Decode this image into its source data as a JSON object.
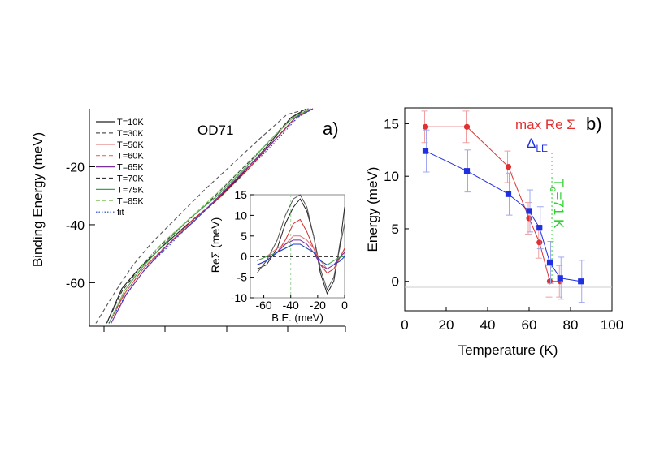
{
  "chart_data": [
    {
      "panel": "a)",
      "type": "line",
      "annotation": "OD71",
      "ylabel": "Binding Energy (meV)",
      "yticks": [
        -20,
        -40,
        -60
      ],
      "ylim": [
        0,
        -75
      ],
      "legend": [
        "T=10K",
        "T=30K",
        "T=50K",
        "T=60K",
        "T=65K",
        "T=70K",
        "T=75K",
        "T=85K",
        "fit"
      ],
      "legend_position": "top-left",
      "series": [
        {
          "name": "T=10K",
          "color": "#222222",
          "dash": "solid",
          "x": [
            0.05,
            0.12,
            0.2,
            0.3,
            0.42,
            0.55,
            0.68,
            0.8,
            0.9,
            0.97
          ],
          "y": [
            -74,
            -62,
            -55,
            -48,
            -40,
            -32,
            -22,
            -12,
            -3,
            0
          ]
        },
        {
          "name": "T=30K",
          "color": "#555555",
          "dash": "dash",
          "x": [
            0.0,
            0.09,
            0.17,
            0.26,
            0.38,
            0.5,
            0.63,
            0.76,
            0.88,
            0.98
          ],
          "y": [
            -74,
            -63,
            -54,
            -46,
            -37,
            -28,
            -19,
            -10,
            -2,
            0
          ]
        },
        {
          "name": "T=50K",
          "color": "#d03030",
          "dash": "solid",
          "x": [
            0.06,
            0.13,
            0.22,
            0.33,
            0.45,
            0.58,
            0.7,
            0.82,
            0.92,
            1.0
          ],
          "y": [
            -74,
            -64,
            -55,
            -47,
            -38,
            -30,
            -21,
            -11,
            -3,
            0
          ]
        },
        {
          "name": "T=60K",
          "color": "#e07070",
          "dash": "dash",
          "x": [
            0.06,
            0.14,
            0.23,
            0.34,
            0.46,
            0.58,
            0.7,
            0.82,
            0.93,
            1.0
          ],
          "y": [
            -74,
            -63,
            -54,
            -46,
            -38,
            -29,
            -20,
            -11,
            -3,
            0
          ]
        },
        {
          "name": "T=65K",
          "color": "#7a2f9a",
          "dash": "solid",
          "x": [
            0.07,
            0.14,
            0.22,
            0.33,
            0.45,
            0.57,
            0.69,
            0.81,
            0.92,
            1.0
          ],
          "y": [
            -74,
            -64,
            -56,
            -47,
            -39,
            -30,
            -21,
            -12,
            -3,
            0
          ]
        },
        {
          "name": "T=70K",
          "color": "#333333",
          "dash": "dash",
          "x": [
            0.05,
            0.12,
            0.2,
            0.3,
            0.42,
            0.55,
            0.67,
            0.79,
            0.9,
            0.99
          ],
          "y": [
            -74,
            -63,
            -55,
            -47,
            -39,
            -30,
            -21,
            -12,
            -3,
            0
          ]
        },
        {
          "name": "T=75K",
          "color": "#3aa84a",
          "dash": "solid",
          "x": [
            0.06,
            0.13,
            0.21,
            0.31,
            0.43,
            0.56,
            0.68,
            0.8,
            0.91,
            0.99
          ],
          "y": [
            -74,
            -63,
            -55,
            -47,
            -38,
            -30,
            -21,
            -11,
            -3,
            0
          ]
        },
        {
          "name": "T=85K",
          "color": "#8fc96a",
          "dash": "dash",
          "x": [
            0.06,
            0.13,
            0.21,
            0.31,
            0.43,
            0.56,
            0.68,
            0.8,
            0.91,
            0.99
          ],
          "y": [
            -74,
            -63,
            -54,
            -46,
            -38,
            -29,
            -20,
            -11,
            -3,
            0
          ]
        },
        {
          "name": "fit",
          "color": "#1a3fcc",
          "dash": "dot",
          "x": [
            0.06,
            0.14,
            0.23,
            0.34,
            0.46,
            0.58,
            0.7,
            0.82,
            0.93,
            1.0
          ],
          "y": [
            -74,
            -64,
            -55,
            -47,
            -38,
            -30,
            -21,
            -12,
            -3,
            0
          ]
        }
      ],
      "inset": {
        "xlabel": "B.E. (meV)",
        "ylabel": "ReΣ (meV)",
        "xticks": [
          -60,
          -40,
          -20,
          0
        ],
        "yticks": [
          15,
          10,
          5,
          0,
          -5,
          -10
        ],
        "xlim": [
          -70,
          0
        ],
        "ylim": [
          -10,
          15
        ],
        "series": [
          {
            "name": "T=10K",
            "color": "#222222",
            "x": [
              -65,
              -58,
              -50,
              -44,
              -38,
              -33,
              -28,
              -23,
              -18,
              -13,
              -8,
              -3,
              0
            ],
            "y": [
              -3,
              -2,
              2,
              8,
              12,
              14,
              11,
              5,
              -4,
              -9,
              -6,
              4,
              12
            ]
          },
          {
            "name": "T=30K",
            "color": "#555555",
            "x": [
              -65,
              -58,
              -50,
              -44,
              -38,
              -33,
              -28,
              -23,
              -18,
              -13,
              -8,
              -3,
              0
            ],
            "y": [
              -4,
              -1,
              4,
              10,
              14,
              15,
              12,
              5,
              -3,
              -8,
              -5,
              3,
              8
            ]
          },
          {
            "name": "T=50K",
            "color": "#d03030",
            "x": [
              -65,
              -58,
              -50,
              -44,
              -38,
              -33,
              -28,
              -23,
              -18,
              -13,
              -8,
              -3,
              0
            ],
            "y": [
              -2,
              -1,
              1,
              4,
              8,
              9,
              6,
              2,
              -2,
              -4,
              -3,
              0,
              2
            ]
          },
          {
            "name": "T=60K",
            "color": "#e07070",
            "x": [
              -65,
              -58,
              -50,
              -44,
              -38,
              -33,
              -28,
              -23,
              -18,
              -13,
              -8,
              -3,
              0
            ],
            "y": [
              -1,
              0,
              2,
              3,
              5,
              5,
              4,
              2,
              -1,
              -3,
              -2,
              0,
              1
            ]
          },
          {
            "name": "T=65K",
            "color": "#7a2f9a",
            "x": [
              -65,
              -58,
              -50,
              -44,
              -38,
              -33,
              -28,
              -23,
              -18,
              -13,
              -8,
              -3,
              0
            ],
            "y": [
              -2,
              -1,
              1,
              3,
              4,
              4,
              3,
              1,
              -2,
              -3,
              -2,
              0,
              1
            ]
          },
          {
            "name": "T=75K",
            "color": "#3aa84a",
            "x": [
              -65,
              -58,
              -50,
              -44,
              -38,
              -33,
              -28,
              -23,
              -18,
              -13,
              -8,
              -3,
              0
            ],
            "y": [
              -1,
              0,
              1,
              2,
              3,
              3,
              2,
              1,
              -1,
              -2,
              -1,
              0,
              0
            ]
          },
          {
            "name": "fit",
            "color": "#1a3fcc",
            "x": [
              -65,
              -58,
              -50,
              -44,
              -38,
              -33,
              -28,
              -23,
              -18,
              -13,
              -8,
              -3,
              0
            ],
            "y": [
              -2,
              -1,
              1,
              2,
              3,
              3,
              2,
              1,
              -1,
              -2,
              -2,
              -1,
              0
            ]
          }
        ]
      }
    },
    {
      "panel": "b)",
      "type": "line",
      "xlabel": "Temperature (K)",
      "ylabel": "Energy (meV)",
      "xticks": [
        0,
        20,
        40,
        60,
        80,
        100
      ],
      "yticks": [
        0,
        5,
        10,
        15
      ],
      "xlim": [
        0,
        100
      ],
      "ylim": [
        -2.8,
        16.5
      ],
      "vertical_marker": {
        "x": 71,
        "label": "T",
        "sub": "c",
        "suffix": "=71 K",
        "color": "#2fd02f"
      },
      "series": [
        {
          "name": "max Re Σ",
          "label": "max Re Σ",
          "color": "#e03030",
          "marker": "circle",
          "x": [
            10,
            30,
            50,
            60,
            65,
            70,
            75
          ],
          "y": [
            14.7,
            14.7,
            10.9,
            6.0,
            3.7,
            0.0,
            0.0
          ],
          "err": [
            1.5,
            1.5,
            1.5,
            1.5,
            1.5,
            1.5,
            1.5
          ]
        },
        {
          "name": "Δ_LE",
          "label": "Δ",
          "sub": "LE",
          "color": "#2030e0",
          "marker": "square",
          "x": [
            10,
            30,
            50,
            60,
            65,
            70,
            75,
            85
          ],
          "y": [
            12.4,
            10.5,
            8.3,
            6.7,
            5.1,
            1.8,
            0.3,
            0.0
          ],
          "err": [
            2.0,
            2.0,
            2.0,
            2.0,
            2.0,
            2.0,
            2.0,
            2.0
          ]
        }
      ]
    }
  ]
}
